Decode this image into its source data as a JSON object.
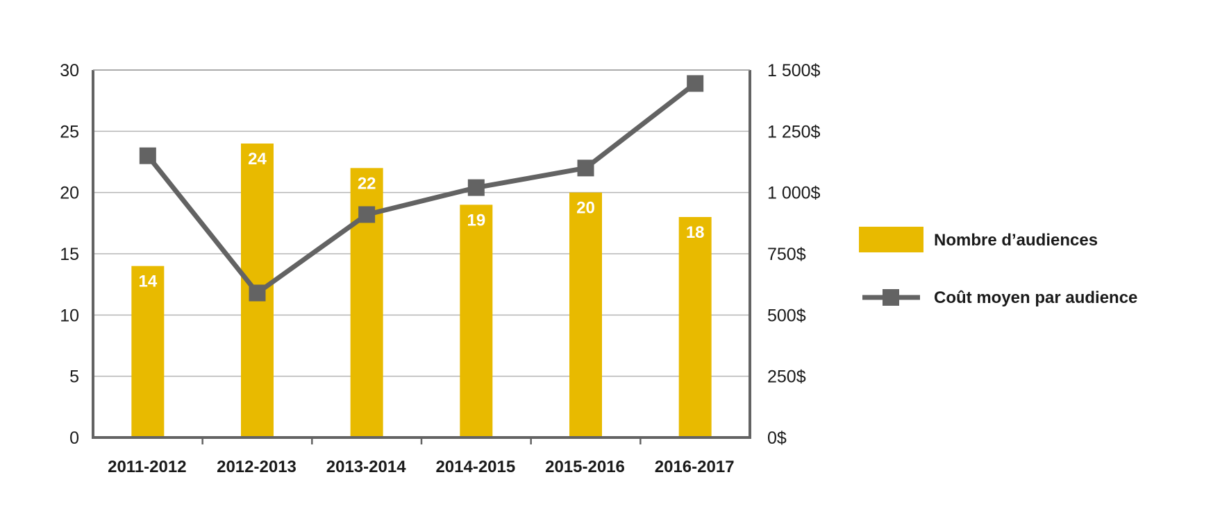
{
  "chart_data": {
    "type": "bar",
    "title": "",
    "categories": [
      "2011-2012",
      "2012-2013",
      "2013-2014",
      "2014-2015",
      "2015-2016",
      "2016-2017"
    ],
    "series": [
      {
        "name": "Nombre d’audiences",
        "type": "bar",
        "axis": "left",
        "values": [
          14,
          24,
          22,
          19,
          20,
          18
        ],
        "data_labels": [
          "14",
          "24",
          "22",
          "19",
          "20",
          "18"
        ],
        "color": "#E8BA00"
      },
      {
        "name": "Coût moyen par audience",
        "type": "line",
        "axis": "right",
        "values": [
          1150,
          590,
          910,
          1020,
          1100,
          1445
        ],
        "color": "#636363",
        "marker": "square"
      }
    ],
    "y_left": {
      "min": 0,
      "max": 30,
      "ticks": [
        0,
        5,
        10,
        15,
        20,
        25,
        30
      ],
      "tick_labels": [
        "0",
        "5",
        "10",
        "15",
        "20",
        "25",
        "30"
      ]
    },
    "y_right": {
      "min": 0,
      "max": 1500,
      "ticks": [
        0,
        250,
        500,
        750,
        1000,
        1250,
        1500
      ],
      "tick_labels": [
        "0$",
        "250$",
        "500$",
        "750$",
        "1 000$",
        "1 250$",
        "1 500$"
      ]
    },
    "grid": true,
    "legend_position": "right"
  }
}
